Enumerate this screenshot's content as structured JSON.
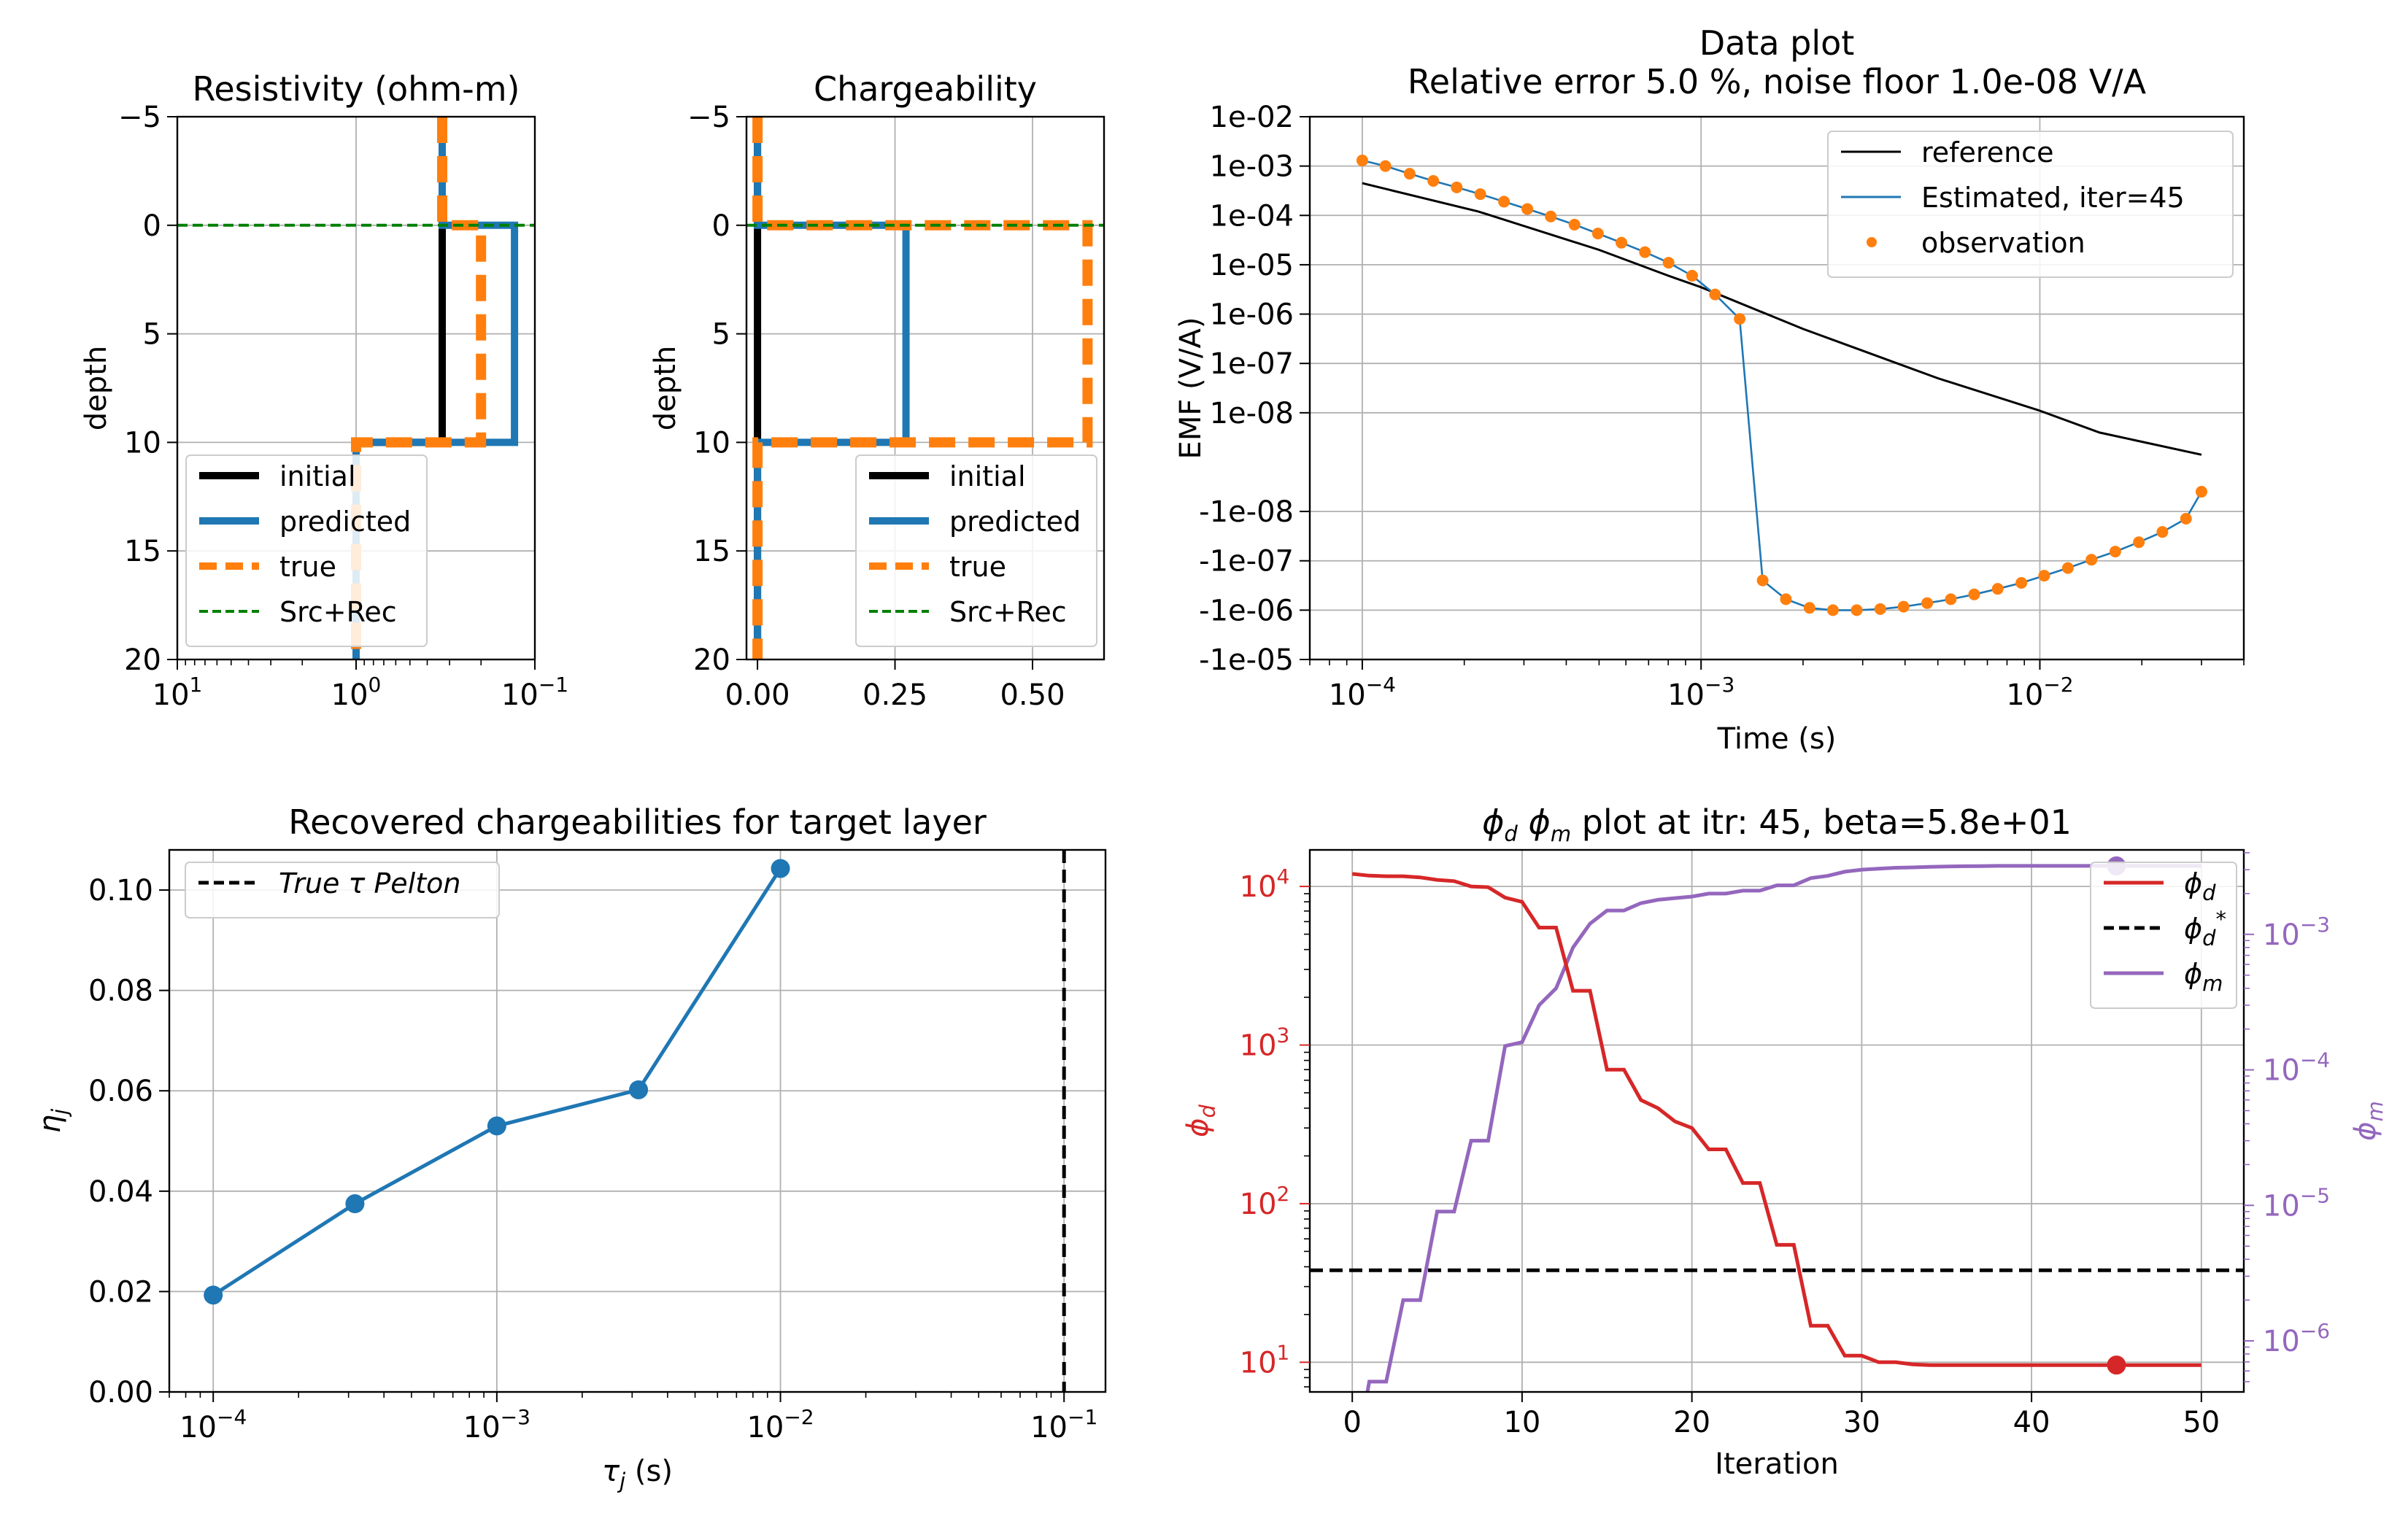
{
  "chart_data": [
    {
      "id": "resistivity",
      "type": "line",
      "title": "Resistivity (ohm-m)",
      "xlabel": "",
      "ylabel": "depth",
      "xscale": "log",
      "xaxis_inverted": true,
      "xlim": [
        10,
        0.1
      ],
      "ylim": [
        20,
        -5
      ],
      "xticks": [
        10,
        1,
        0.1
      ],
      "xtick_labels": [
        "10^1",
        "10^0",
        "10^-1"
      ],
      "yticks": [
        -5,
        0,
        5,
        10,
        15,
        20
      ],
      "ytick_labels": [
        "−5",
        "0",
        "5",
        "10",
        "15",
        "20"
      ],
      "grid": true,
      "legend_position": "lower-left",
      "series": [
        {
          "name": "initial",
          "x": [
            0.33,
            0.33,
            0.33,
            1.0
          ],
          "y": [
            -5,
            0,
            10,
            10
          ],
          "color": "#000000",
          "style": "solid"
        },
        {
          "name": "predicted",
          "x": [
            0.33,
            0.33,
            0.13,
            0.13,
            1.0,
            1.0
          ],
          "y": [
            -5,
            0,
            0,
            10,
            10,
            20
          ],
          "color": "#1f77b4",
          "style": "solid"
        },
        {
          "name": "true",
          "x": [
            0.33,
            0.33,
            0.2,
            0.2,
            1.0,
            1.0
          ],
          "y": [
            -5,
            0,
            0,
            10,
            10,
            20
          ],
          "color": "#ff7f0e",
          "style": "dashed"
        },
        {
          "name": "Src+Rec",
          "x": [
            10,
            0.1
          ],
          "y": [
            0,
            0
          ],
          "color": "#008000",
          "style": "dashed-thin"
        }
      ]
    },
    {
      "id": "chargeability",
      "type": "line",
      "title": "Chargeability",
      "xlabel": "",
      "ylabel": "depth",
      "xscale": "linear",
      "xlim": [
        -0.02,
        0.63
      ],
      "ylim": [
        20,
        -5
      ],
      "xticks": [
        0.0,
        0.25,
        0.5
      ],
      "xtick_labels": [
        "0.00",
        "0.25",
        "0.50"
      ],
      "yticks": [
        -5,
        0,
        5,
        10,
        15,
        20
      ],
      "ytick_labels": [
        "−5",
        "0",
        "5",
        "10",
        "15",
        "20"
      ],
      "grid": true,
      "legend_position": "lower-right",
      "series": [
        {
          "name": "initial",
          "x": [
            0.0,
            0.0
          ],
          "y": [
            -5,
            20
          ],
          "color": "#000000",
          "style": "solid"
        },
        {
          "name": "predicted",
          "x": [
            0.0,
            0.0,
            0.27,
            0.27,
            0.0,
            0.0
          ],
          "y": [
            -5,
            0,
            0,
            10,
            10,
            20
          ],
          "color": "#1f77b4",
          "style": "solid"
        },
        {
          "name": "true",
          "x": [
            0.0,
            0.0,
            0.6,
            0.6,
            0.0,
            0.0
          ],
          "y": [
            -5,
            0,
            0,
            10,
            10,
            20
          ],
          "color": "#ff7f0e",
          "style": "dashed"
        },
        {
          "name": "Src+Rec",
          "x": [
            -0.02,
            0.63
          ],
          "y": [
            0,
            0
          ],
          "color": "#008000",
          "style": "dashed-thin"
        }
      ]
    },
    {
      "id": "data_plot",
      "type": "line",
      "title": "Data plot",
      "subtitle": "Relative error 5.0 %, noise floor 1.0e-08 V/A",
      "xlabel": "Time (s)",
      "ylabel": "EMF (V/A)",
      "xscale": "log",
      "yscale": "symlog",
      "xlim": [
        7e-05,
        0.04
      ],
      "ylim": [
        -1e-05,
        0.01
      ],
      "xticks": [
        0.0001,
        0.001,
        0.01
      ],
      "xtick_labels": [
        "10^-4",
        "10^-3",
        "10^-2"
      ],
      "yticks": [
        0.01,
        0.001,
        0.0001,
        1e-05,
        1e-06,
        1e-07,
        1e-08,
        -1e-08,
        -1e-07,
        -1e-06,
        -1e-05
      ],
      "ytick_labels": [
        "1e-02",
        "1e-03",
        "1e-04",
        "1e-05",
        "1e-06",
        "1e-07",
        "1e-08",
        "-1e-08",
        "-1e-07",
        "-1e-06",
        "-1e-05"
      ],
      "grid": true,
      "legend_position": "top-right",
      "series": [
        {
          "name": "reference",
          "color": "#000000",
          "x": [
            0.0001,
            0.00022,
            0.0005,
            0.0008,
            0.001,
            0.002,
            0.005,
            0.01,
            0.015,
            0.03
          ],
          "y": [
            0.00045,
            0.00012,
            2e-05,
            6e-06,
            3.5e-06,
            5e-07,
            5e-08,
            1.1e-08,
            6e-09,
            1.5e-09
          ]
        },
        {
          "name": "Estimated, iter=45",
          "color": "#1f77b4",
          "x": [
            0.0001,
            0.000117,
            0.000138,
            0.000162,
            0.00019,
            0.000223,
            0.000262,
            0.000307,
            0.00036,
            0.000423,
            0.000496,
            0.000582,
            0.000683,
            0.000802,
            0.000941,
            0.0011,
            0.0013,
            0.00152,
            0.00178,
            0.00209,
            0.00245,
            0.00288,
            0.00338,
            0.00396,
            0.00465,
            0.00546,
            0.0064,
            0.00751,
            0.00882,
            0.0103,
            0.0121,
            0.0142,
            0.0167,
            0.0196,
            0.023,
            0.027,
            0.03
          ],
          "y": [
            0.0013,
            0.001,
            0.0007,
            0.0005,
            0.00037,
            0.00027,
            0.00019,
            0.000135,
            9.5e-05,
            6.5e-05,
            4.3e-05,
            2.8e-05,
            1.8e-05,
            1.1e-05,
            6e-06,
            2.5e-06,
            8e-07,
            -2.5e-07,
            -6e-07,
            -9e-07,
            -1e-06,
            -1e-06,
            -9.5e-07,
            -8.5e-07,
            -7.2e-07,
            -6e-07,
            -4.8e-07,
            -3.7e-07,
            -2.8e-07,
            -2e-07,
            -1.4e-07,
            -9.5e-08,
            -6.5e-08,
            -4.2e-08,
            -2.6e-08,
            -1.4e-08,
            -6e-09
          ]
        },
        {
          "name": "observation",
          "color": "#ff7f0e",
          "marker": "dot",
          "x": [
            0.0001,
            0.000117,
            0.000138,
            0.000162,
            0.00019,
            0.000223,
            0.000262,
            0.000307,
            0.00036,
            0.000423,
            0.000496,
            0.000582,
            0.000683,
            0.000802,
            0.000941,
            0.0011,
            0.0013,
            0.00152,
            0.00178,
            0.00209,
            0.00245,
            0.00288,
            0.00338,
            0.00396,
            0.00465,
            0.00546,
            0.0064,
            0.00751,
            0.00882,
            0.0103,
            0.0121,
            0.0142,
            0.0167,
            0.0196,
            0.023,
            0.027,
            0.03
          ],
          "y": [
            0.0013,
            0.001,
            0.0007,
            0.0005,
            0.00037,
            0.00027,
            0.00019,
            0.000135,
            9.5e-05,
            6.5e-05,
            4.3e-05,
            2.8e-05,
            1.8e-05,
            1.1e-05,
            6e-06,
            2.5e-06,
            8e-07,
            -2.5e-07,
            -6e-07,
            -9e-07,
            -1e-06,
            -1e-06,
            -9.5e-07,
            -8.5e-07,
            -7.2e-07,
            -6e-07,
            -4.8e-07,
            -3.7e-07,
            -2.8e-07,
            -2e-07,
            -1.4e-07,
            -9.5e-08,
            -6.5e-08,
            -4.2e-08,
            -2.6e-08,
            -1.4e-08,
            -6e-09
          ]
        }
      ]
    },
    {
      "id": "recovered",
      "type": "line",
      "title": "Recovered chargeabilities for target layer",
      "xlabel": "τ_j (s)",
      "ylabel": "η_j",
      "xscale": "log",
      "xlim": [
        7e-05,
        0.14
      ],
      "ylim": [
        0.0,
        0.108
      ],
      "xticks": [
        0.0001,
        0.001,
        0.01,
        0.1
      ],
      "xtick_labels": [
        "10^-4",
        "10^-3",
        "10^-2",
        "10^-1"
      ],
      "yticks": [
        0.0,
        0.02,
        0.04,
        0.06,
        0.08,
        0.1
      ],
      "ytick_labels": [
        "0.00",
        "0.02",
        "0.04",
        "0.06",
        "0.08",
        "0.10"
      ],
      "grid": true,
      "legend_position": "top-left",
      "series": [
        {
          "name": "recovered",
          "color": "#1f77b4",
          "marker": "circle",
          "x": [
            0.0001,
            0.000316,
            0.001,
            0.00316,
            0.01
          ],
          "y": [
            0.0193,
            0.0375,
            0.053,
            0.0602,
            0.1043
          ]
        }
      ],
      "vline": {
        "name": "True τ Pelton",
        "x": 0.1,
        "color": "#000000",
        "style": "dashed"
      }
    },
    {
      "id": "phi_plot",
      "type": "line",
      "title": "ϕ_d ϕ_m plot at itr:  45,  beta=5.8e+01",
      "xlabel": "Iteration",
      "ylabel": "ϕ_d",
      "ylabel_right": "ϕ_m",
      "xlim": [
        -2.5,
        52.5
      ],
      "xticks": [
        0,
        10,
        20,
        30,
        40,
        50
      ],
      "xtick_labels": [
        "0",
        "10",
        "20",
        "30",
        "40",
        "50"
      ],
      "yscale": "log",
      "ylim": [
        6.5,
        17000
      ],
      "yticks": [
        10,
        100,
        1000,
        10000
      ],
      "ytick_labels": [
        "10^1",
        "10^2",
        "10^3",
        "10^4"
      ],
      "yscale_right": "log",
      "ylim_right": [
        4.2e-07,
        0.0042
      ],
      "yticks_right": [
        1e-06,
        1e-05,
        0.0001,
        0.001
      ],
      "ytick_labels_right": [
        "10^-6",
        "10^-5",
        "10^-4",
        "10^-3"
      ],
      "grid": true,
      "legend_position": "top-right",
      "phi_d_target": 38,
      "highlight_iteration": 45,
      "series": [
        {
          "name": "ϕ_d",
          "color": "#d62728",
          "axis": "left",
          "x": [
            0,
            1,
            2,
            3,
            4,
            5,
            6,
            7,
            8,
            9,
            10,
            11,
            12,
            13,
            14,
            15,
            16,
            17,
            18,
            19,
            20,
            21,
            22,
            23,
            24,
            25,
            26,
            27,
            28,
            29,
            30,
            31,
            32,
            33,
            34,
            35,
            36,
            37,
            38,
            39,
            40,
            41,
            42,
            43,
            44,
            45,
            46,
            47,
            48,
            49,
            50
          ],
          "y": [
            12000,
            11700,
            11600,
            11600,
            11400,
            11000,
            10800,
            10000,
            9900,
            8500,
            8000,
            5500,
            5500,
            2200,
            2200,
            700,
            700,
            450,
            400,
            330,
            300,
            220,
            220,
            135,
            135,
            55,
            55,
            17,
            17,
            11,
            11,
            10,
            10,
            9.7,
            9.6,
            9.6,
            9.6,
            9.6,
            9.6,
            9.6,
            9.6,
            9.6,
            9.6,
            9.6,
            9.6,
            9.6,
            9.6,
            9.6,
            9.6,
            9.6,
            9.6
          ]
        },
        {
          "name": "ϕ_d^*",
          "color": "#000000",
          "style": "dashed",
          "axis": "left",
          "x": [
            -2.5,
            52.5
          ],
          "y": [
            38,
            38
          ]
        },
        {
          "name": "ϕ_m",
          "color": "#9467bd",
          "axis": "right",
          "x": [
            0,
            1,
            2,
            3,
            4,
            5,
            6,
            7,
            8,
            9,
            10,
            11,
            12,
            13,
            14,
            15,
            16,
            17,
            18,
            19,
            20,
            21,
            22,
            23,
            24,
            25,
            26,
            27,
            28,
            29,
            30,
            31,
            32,
            33,
            34,
            35,
            36,
            37,
            38,
            39,
            40,
            41,
            42,
            43,
            44,
            45,
            46,
            47,
            48,
            49,
            50
          ],
          "y": [
            1e-07,
            5e-07,
            5e-07,
            2e-06,
            2e-06,
            9e-06,
            9e-06,
            3e-05,
            3e-05,
            0.00015,
            0.00016,
            0.0003,
            0.0004,
            0.0008,
            0.0012,
            0.0015,
            0.0015,
            0.0017,
            0.0018,
            0.00185,
            0.0019,
            0.002,
            0.002,
            0.0021,
            0.0021,
            0.0023,
            0.0023,
            0.0026,
            0.0027,
            0.0029,
            0.003,
            0.00305,
            0.0031,
            0.00312,
            0.00315,
            0.00317,
            0.00318,
            0.00319,
            0.0032,
            0.0032,
            0.0032,
            0.0032,
            0.0032,
            0.0032,
            0.0032,
            0.0032,
            0.0032,
            0.0032,
            0.0032,
            0.0032,
            0.0032
          ]
        }
      ]
    }
  ]
}
